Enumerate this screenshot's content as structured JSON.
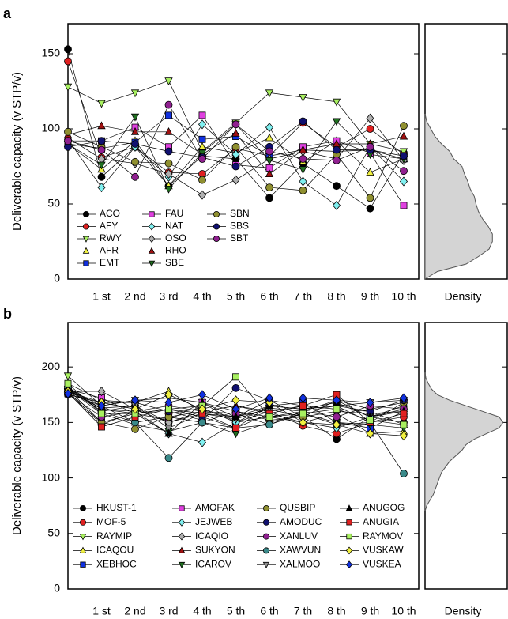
{
  "chart_data": [
    {
      "type": "line",
      "panel": "a",
      "ylabel": "Deliverable capacity (v STP/v)",
      "categories": [
        null,
        "1 st",
        "2 nd",
        "3 rd",
        "4 th",
        "5 th",
        "6 th",
        "7 th",
        "8 th",
        "9 th",
        "10 th"
      ],
      "ylim": [
        0,
        170
      ],
      "yticks": [
        0,
        50,
        100,
        150
      ],
      "series": [
        {
          "name": "ACO",
          "color": "#000000",
          "marker": "circle",
          "values": [
            153,
            68,
            88,
            62,
            82,
            80,
            54,
            77,
            62,
            47,
            84
          ]
        },
        {
          "name": "AFY",
          "color": "#e02020",
          "marker": "circle",
          "values": [
            145,
            81,
            88,
            71,
            70,
            87,
            82,
            104,
            88,
            100,
            83
          ]
        },
        {
          "name": "RWY",
          "color": "#a8f060",
          "marker": "down",
          "values": [
            128,
            117,
            124,
            132,
            85,
            104,
            124,
            121,
            118,
            90,
            85
          ]
        },
        {
          "name": "AFR",
          "color": "#f0f040",
          "marker": "up",
          "values": [
            90,
            73,
            92,
            62,
            88,
            84,
            94,
            78,
            92,
            71,
            80
          ]
        },
        {
          "name": "EMT",
          "color": "#1030e0",
          "marker": "square",
          "values": [
            90,
            87,
            91,
            109,
            93,
            95,
            82,
            86,
            85,
            86,
            80
          ]
        },
        {
          "name": "FAU",
          "color": "#e040e0",
          "marker": "square",
          "values": [
            92,
            92,
            101,
            88,
            109,
            76,
            74,
            88,
            92,
            84,
            49
          ]
        },
        {
          "name": "NAT",
          "color": "#80f0f0",
          "marker": "diamond",
          "values": [
            93,
            61,
            88,
            68,
            103,
            83,
            101,
            65,
            49,
            88,
            65
          ]
        },
        {
          "name": "OSO",
          "color": "#b0b0b0",
          "marker": "diamond",
          "values": [
            94,
            80,
            77,
            70,
            56,
            66,
            80,
            85,
            80,
            107,
            79
          ]
        },
        {
          "name": "RHO",
          "color": "#a01010",
          "marker": "up",
          "values": [
            96,
            102,
            98,
            98,
            83,
            97,
            70,
            86,
            90,
            90,
            95
          ]
        },
        {
          "name": "SBE",
          "color": "#207020",
          "marker": "down",
          "values": [
            90,
            76,
            108,
            60,
            84,
            103,
            79,
            73,
            105,
            83,
            80
          ]
        },
        {
          "name": "SBN",
          "color": "#909030",
          "marker": "circle",
          "values": [
            98,
            88,
            78,
            77,
            66,
            88,
            61,
            59,
            83,
            54,
            102
          ]
        },
        {
          "name": "SBS",
          "color": "#101070",
          "marker": "circle",
          "values": [
            88,
            92,
            90,
            85,
            81,
            75,
            88,
            105,
            86,
            86,
            82
          ]
        },
        {
          "name": "SBT",
          "color": "#902090",
          "marker": "circle",
          "values": [
            92,
            86,
            68,
            116,
            80,
            103,
            85,
            80,
            79,
            88,
            72
          ]
        }
      ],
      "density": {
        "type": "density",
        "label": "Density",
        "y": [
          0,
          5,
          10,
          15,
          20,
          25,
          30,
          35,
          40,
          45,
          50,
          55,
          60,
          65,
          70,
          75,
          80,
          85,
          90,
          95,
          100,
          105,
          110
        ],
        "values": [
          0,
          0.15,
          0.5,
          0.65,
          0.78,
          0.82,
          0.82,
          0.77,
          0.7,
          0.65,
          0.62,
          0.6,
          0.55,
          0.52,
          0.48,
          0.45,
          0.35,
          0.3,
          0.2,
          0.12,
          0.07,
          0.02,
          0
        ]
      }
    },
    {
      "type": "line",
      "panel": "b",
      "ylabel": "Deliverable capacity (v STP/v)",
      "categories": [
        null,
        "1 st",
        "2 nd",
        "3 rd",
        "4 th",
        "5 th",
        "6 th",
        "7 th",
        "8 th",
        "9 th",
        "10 th"
      ],
      "ylim": [
        0,
        240
      ],
      "yticks": [
        0,
        50,
        100,
        150,
        200
      ],
      "series": [
        {
          "name": "HKUST-1",
          "color": "#000000",
          "marker": "circle",
          "values": [
            180,
            160,
            165,
            150,
            160,
            155,
            170,
            155,
            135,
            155,
            150
          ]
        },
        {
          "name": "MOF-5",
          "color": "#e02020",
          "marker": "circle",
          "values": [
            178,
            148,
            160,
            158,
            163,
            150,
            160,
            147,
            140,
            150,
            155
          ]
        },
        {
          "name": "RAYMIP",
          "color": "#a8f060",
          "marker": "down",
          "values": [
            192,
            165,
            170,
            172,
            168,
            150,
            165,
            162,
            165,
            150,
            168
          ]
        },
        {
          "name": "ICAQOU",
          "color": "#f0f040",
          "marker": "up",
          "values": [
            185,
            170,
            168,
            178,
            160,
            165,
            158,
            150,
            158,
            140,
            142
          ]
        },
        {
          "name": "XEBHOC",
          "color": "#1030e0",
          "marker": "square",
          "values": [
            176,
            150,
            158,
            162,
            155,
            145,
            165,
            168,
            150,
            145,
            160
          ]
        },
        {
          "name": "AMOFAK",
          "color": "#e040e0",
          "marker": "square",
          "values": [
            180,
            172,
            158,
            152,
            168,
            160,
            155,
            160,
            170,
            155,
            162
          ]
        },
        {
          "name": "JEJWEB",
          "color": "#80f0f0",
          "marker": "diamond",
          "values": [
            182,
            162,
            160,
            140,
            132,
            150,
            155,
            150,
            145,
            155,
            165
          ]
        },
        {
          "name": "ICAQIO",
          "color": "#b0b0b0",
          "marker": "diamond",
          "values": [
            178,
            178,
            162,
            150,
            158,
            155,
            162,
            155,
            160,
            158,
            160
          ]
        },
        {
          "name": "SUKYON",
          "color": "#a01010",
          "marker": "up",
          "values": [
            180,
            165,
            150,
            155,
            160,
            165,
            160,
            165,
            162,
            160,
            148
          ]
        },
        {
          "name": "ICAROV",
          "color": "#207020",
          "marker": "down",
          "values": [
            180,
            158,
            148,
            142,
            150,
            140,
            150,
            158,
            150,
            148,
            145
          ]
        },
        {
          "name": "QUSBIP",
          "color": "#909030",
          "marker": "circle",
          "values": [
            180,
            150,
            144,
            155,
            150,
            160,
            152,
            155,
            170,
            162,
            168
          ]
        },
        {
          "name": "AMODUC",
          "color": "#101070",
          "marker": "circle",
          "values": [
            175,
            168,
            168,
            160,
            152,
            181,
            170,
            165,
            165,
            160,
            170
          ]
        },
        {
          "name": "XANLUV",
          "color": "#902090",
          "marker": "circle",
          "values": [
            176,
            155,
            160,
            165,
            160,
            158,
            148,
            160,
            155,
            165,
            162
          ]
        },
        {
          "name": "XAWVUN",
          "color": "#3a8a8a",
          "marker": "circle",
          "values": [
            182,
            160,
            150,
            118,
            150,
            145,
            148,
            158,
            148,
            150,
            104
          ]
        },
        {
          "name": "XALMOO",
          "color": "#909090",
          "marker": "down",
          "values": [
            178,
            163,
            165,
            145,
            158,
            153,
            163,
            160,
            165,
            168,
            170
          ]
        },
        {
          "name": "ANUGOG",
          "color": "#000000",
          "marker": "up",
          "values": [
            180,
            162,
            158,
            140,
            168,
            155,
            165,
            162,
            168,
            155,
            160
          ]
        },
        {
          "name": "ANUGIA",
          "color": "#e02020",
          "marker": "square",
          "values": [
            177,
            146,
            155,
            162,
            158,
            145,
            158,
            165,
            175,
            150,
            158
          ]
        },
        {
          "name": "RAYMOV",
          "color": "#a8f060",
          "marker": "square",
          "values": [
            185,
            158,
            158,
            162,
            165,
            191,
            155,
            158,
            162,
            152,
            148
          ]
        },
        {
          "name": "VUSKAW",
          "color": "#f0f040",
          "marker": "diamond",
          "values": [
            178,
            168,
            162,
            175,
            162,
            170,
            168,
            150,
            148,
            140,
            138
          ]
        },
        {
          "name": "VUSKEA",
          "color": "#1030e0",
          "marker": "diamond",
          "values": [
            176,
            165,
            170,
            168,
            175,
            162,
            172,
            172,
            170,
            168,
            172
          ]
        }
      ],
      "density": {
        "type": "density",
        "label": "Density",
        "y": [
          70,
          75,
          85,
          95,
          105,
          115,
          125,
          130,
          135,
          140,
          145,
          150,
          155,
          160,
          165,
          170,
          175,
          180,
          185,
          190,
          195
        ],
        "values": [
          0,
          0.02,
          0.1,
          0.15,
          0.2,
          0.3,
          0.45,
          0.5,
          0.6,
          0.75,
          0.9,
          0.95,
          0.9,
          0.7,
          0.5,
          0.3,
          0.15,
          0.08,
          0.04,
          0.01,
          0
        ]
      }
    }
  ]
}
